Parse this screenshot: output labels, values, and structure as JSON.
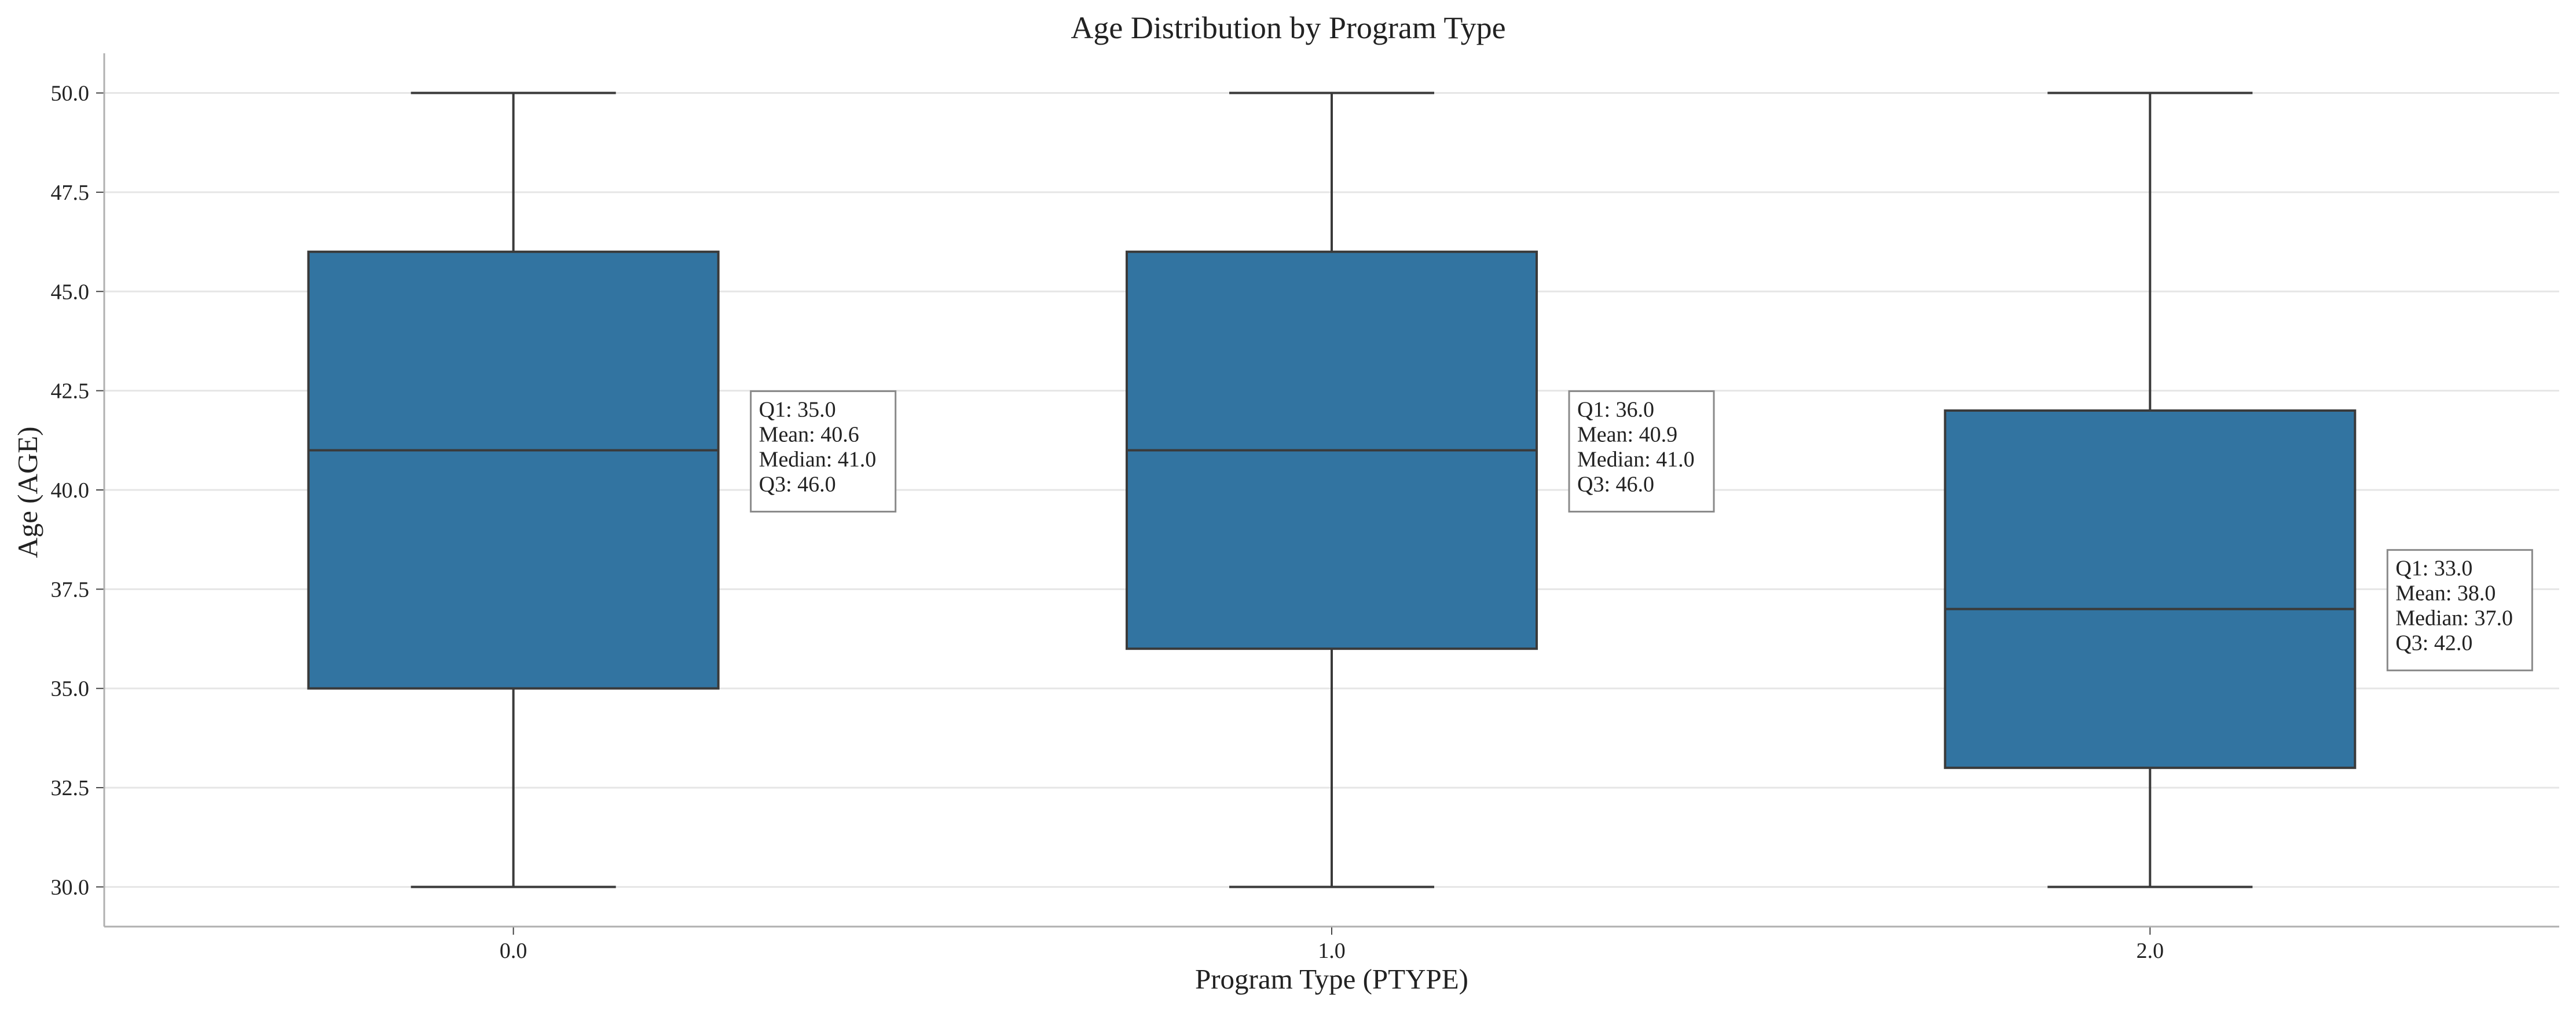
{
  "chart_data": {
    "type": "box",
    "title": "Age Distribution by Program Type",
    "xlabel": "Program Type (PTYPE)",
    "ylabel": "Age (AGE)",
    "categories": [
      "0.0",
      "1.0",
      "2.0"
    ],
    "ylim": [
      29.0,
      51.0
    ],
    "yticks": [
      "30.0",
      "32.5",
      "35.0",
      "37.5",
      "40.0",
      "42.5",
      "45.0",
      "47.5",
      "50.0"
    ],
    "ytick_values": [
      30.0,
      32.5,
      35.0,
      37.5,
      40.0,
      42.5,
      45.0,
      47.5,
      50.0
    ],
    "grid": "horizontal",
    "box_color": "#3274a1",
    "series": [
      {
        "category": "0.0",
        "whisker_low": 30.0,
        "q1": 35.0,
        "median": 41.0,
        "q3": 46.0,
        "whisker_high": 50.0,
        "mean": 40.6,
        "annotation": [
          "Q1: 35.0",
          "Mean: 40.6",
          "Median: 41.0",
          "Q3: 46.0"
        ]
      },
      {
        "category": "1.0",
        "whisker_low": 30.0,
        "q1": 36.0,
        "median": 41.0,
        "q3": 46.0,
        "whisker_high": 50.0,
        "mean": 40.9,
        "annotation": [
          "Q1: 36.0",
          "Mean: 40.9",
          "Median: 41.0",
          "Q3: 46.0"
        ]
      },
      {
        "category": "2.0",
        "whisker_low": 30.0,
        "q1": 33.0,
        "median": 37.0,
        "q3": 42.0,
        "whisker_high": 50.0,
        "mean": 38.0,
        "annotation": [
          "Q1: 33.0",
          "Mean: 38.0",
          "Median: 37.0",
          "Q3: 42.0"
        ]
      }
    ]
  }
}
